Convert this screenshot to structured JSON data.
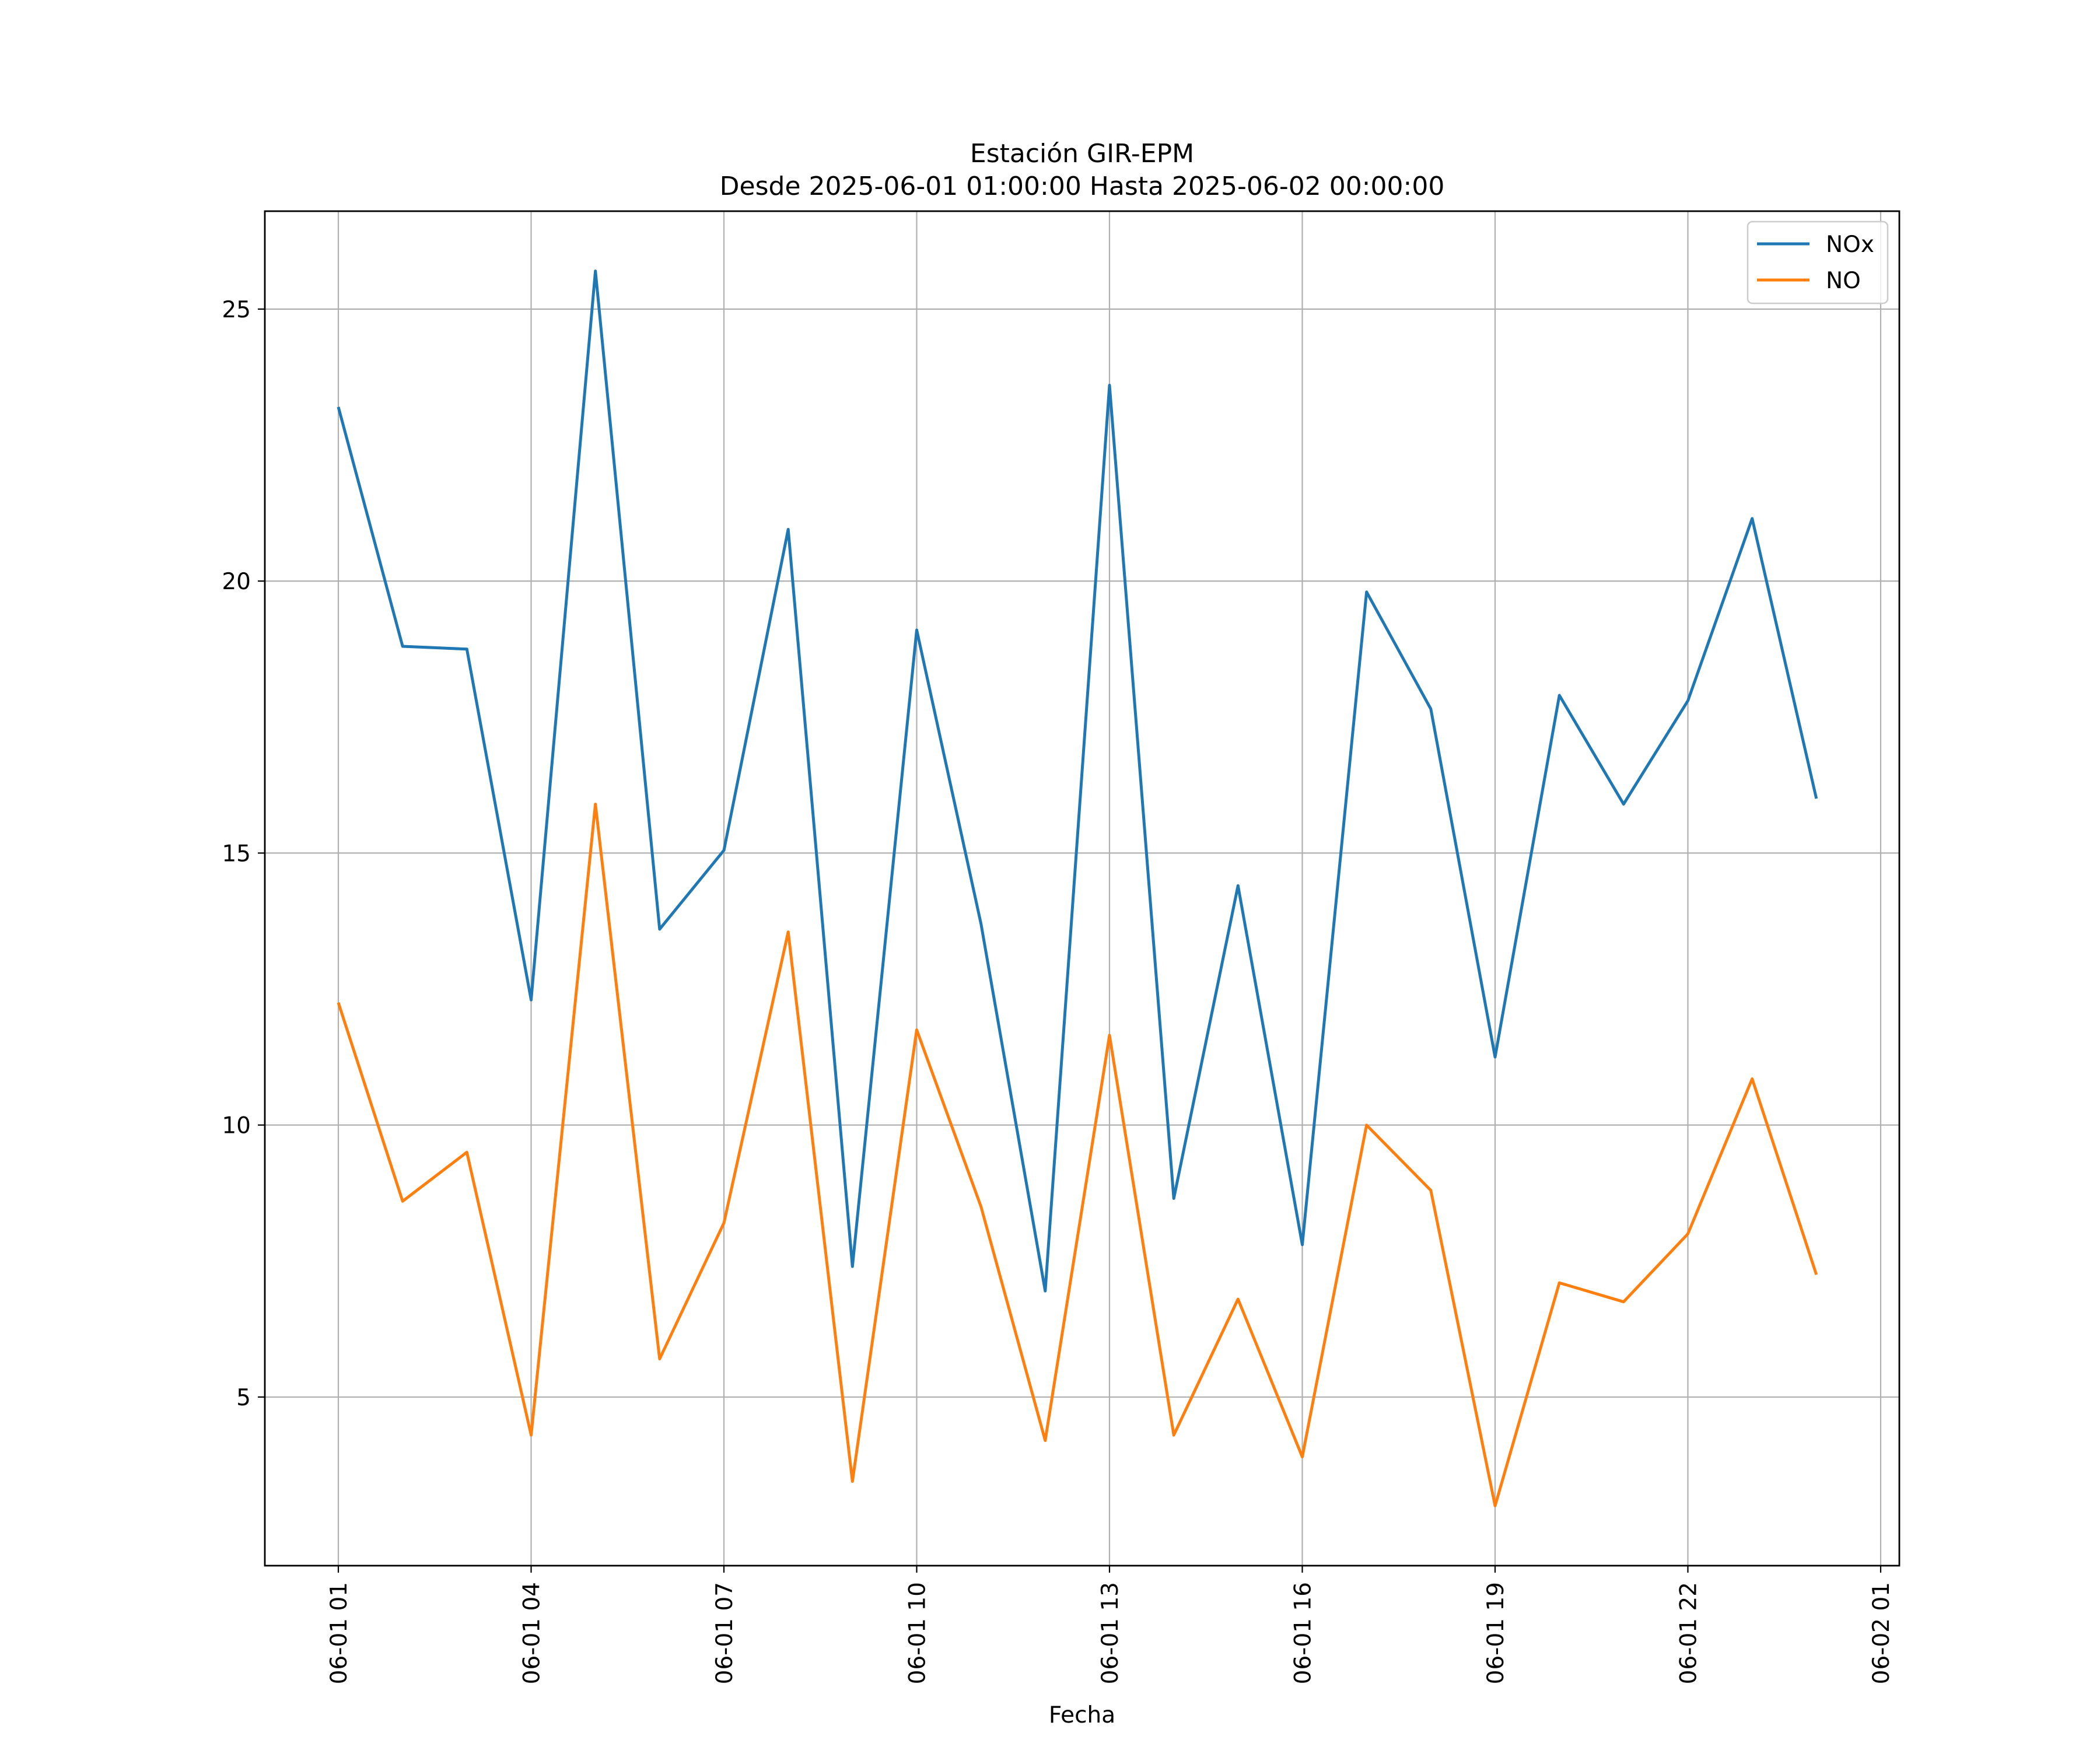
{
  "chart_data": {
    "type": "line",
    "title": "Estación GIR-EPM",
    "subtitle": "Desde 2025-06-01 01:00:00 Hasta 2025-06-02 00:00:00",
    "xlabel": "Fecha",
    "ylabel": "",
    "x_ticks": [
      "06-01 01",
      "06-01 04",
      "06-01 07",
      "06-01 10",
      "06-01 13",
      "06-01 16",
      "06-01 19",
      "06-01 22",
      "06-02 01"
    ],
    "y_ticks": [
      "5",
      "10",
      "15",
      "20",
      "25"
    ],
    "x": [
      "06-01 01",
      "06-01 02",
      "06-01 03",
      "06-01 04",
      "06-01 05",
      "06-01 06",
      "06-01 07",
      "06-01 08",
      "06-01 09",
      "06-01 10",
      "06-01 11",
      "06-01 12",
      "06-01 13",
      "06-01 14",
      "06-01 15",
      "06-01 16",
      "06-01 17",
      "06-01 18",
      "06-01 19",
      "06-01 20",
      "06-01 21",
      "06-01 22",
      "06-01 23",
      "06-02 00"
    ],
    "xlim": [
      "2025-06-01 00:00:00",
      "2025-06-02 01:00:00"
    ],
    "ylim": [
      1.9,
      26.8
    ],
    "grid": true,
    "legend_position": "top-right",
    "series": [
      {
        "name": "NOx",
        "color": "#1f77b4",
        "values": [
          23.2,
          18.8,
          18.75,
          12.3,
          25.7,
          13.6,
          15.05,
          20.95,
          7.4,
          19.1,
          13.7,
          6.95,
          23.6,
          8.65,
          14.4,
          7.8,
          19.8,
          17.65,
          11.25,
          17.9,
          15.9,
          17.8,
          21.15,
          16.0
        ]
      },
      {
        "name": "NO",
        "color": "#ff7f0e",
        "values": [
          12.25,
          8.6,
          9.5,
          4.3,
          15.9,
          5.7,
          8.2,
          13.55,
          3.45,
          11.75,
          8.5,
          4.2,
          11.65,
          4.3,
          6.8,
          3.9,
          10.0,
          8.8,
          3.0,
          7.1,
          6.75,
          8.0,
          10.85,
          7.25
        ]
      }
    ]
  }
}
